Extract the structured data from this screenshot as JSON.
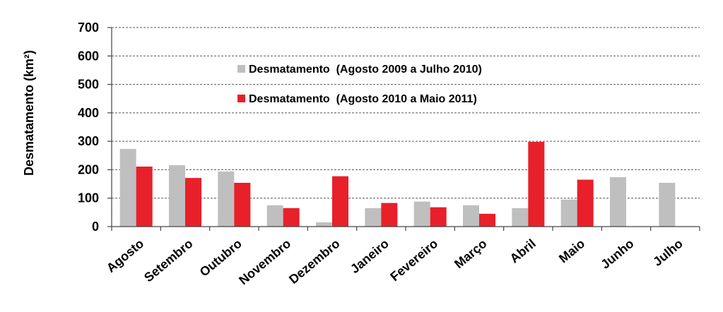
{
  "chart_data": {
    "type": "bar",
    "title": "",
    "xlabel": "",
    "ylabel": "Desmatamento (km²)",
    "ylim": [
      0,
      700
    ],
    "yticks": [
      0,
      100,
      200,
      300,
      400,
      500,
      600,
      700
    ],
    "grid": true,
    "legend_position": "top-center",
    "categories": [
      "Agosto",
      "Setembro",
      "Outubro",
      "Novembro",
      "Dezembro",
      "Janeiro",
      "Fevereiro",
      "Março",
      "Abril",
      "Maio",
      "Junho",
      "Julho"
    ],
    "series": [
      {
        "name": "Desmatamento  (Agosto 2009 a Julho 2010)",
        "color": "#bfbfbf",
        "values": [
          273,
          216,
          194,
          75,
          15,
          65,
          88,
          75,
          65,
          95,
          174,
          154
        ]
      },
      {
        "name": "Desmatamento  (Agosto 2010 a Maio 2011)",
        "color": "#e8202a",
        "values": [
          211,
          171,
          154,
          65,
          177,
          83,
          68,
          45,
          298,
          165,
          null,
          null
        ]
      }
    ]
  }
}
